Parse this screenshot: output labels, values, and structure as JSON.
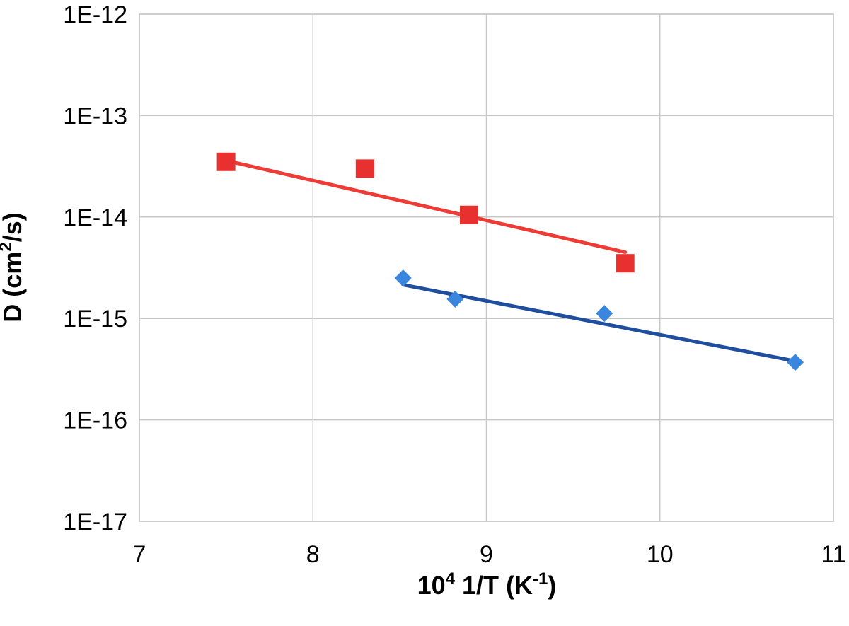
{
  "chart_data": {
    "type": "scatter",
    "title": "",
    "xlabel": {
      "base": "10",
      "base_sup": "4",
      "mid": " 1/T (K",
      "mid_sup": "-1",
      "end": ")"
    },
    "ylabel": {
      "pre": "D (cm",
      "sup": "2",
      "post": "/s)"
    },
    "xlim": [
      7,
      11
    ],
    "ylim": [
      1e-17,
      1e-12
    ],
    "yscale": "log",
    "grid": true,
    "x_ticks": [
      "7",
      "8",
      "9",
      "10",
      "11"
    ],
    "x_tick_values": [
      7,
      8,
      9,
      10,
      11
    ],
    "y_ticks": [
      "1E-17",
      "1E-16",
      "1E-15",
      "1E-14",
      "1E-13",
      "1E-12"
    ],
    "y_tick_values": [
      1e-17,
      1e-16,
      1e-15,
      1e-14,
      1e-13,
      1e-12
    ],
    "series": [
      {
        "marker": "square",
        "color": "#e8302f",
        "points": [
          {
            "x": 7.5,
            "y": 3.5e-14
          },
          {
            "x": 8.3,
            "y": 3e-14
          },
          {
            "x": 8.9,
            "y": 1.05e-14
          },
          {
            "x": 9.8,
            "y": 3.5e-15
          }
        ],
        "trendline": {
          "color": "#ee3b35",
          "from": {
            "x": 7.5,
            "y": 3.6e-14
          },
          "to": {
            "x": 9.8,
            "y": 4.5e-15
          }
        }
      },
      {
        "marker": "diamond",
        "color": "#3a86de",
        "points": [
          {
            "x": 8.52,
            "y": 2.5e-15
          },
          {
            "x": 8.82,
            "y": 1.55e-15
          },
          {
            "x": 9.68,
            "y": 1.12e-15
          },
          {
            "x": 10.78,
            "y": 3.7e-16
          }
        ],
        "trendline": {
          "color": "#1f4e9e",
          "from": {
            "x": 8.52,
            "y": 2.15e-15
          },
          "to": {
            "x": 10.78,
            "y": 3.8e-16
          }
        }
      }
    ]
  }
}
